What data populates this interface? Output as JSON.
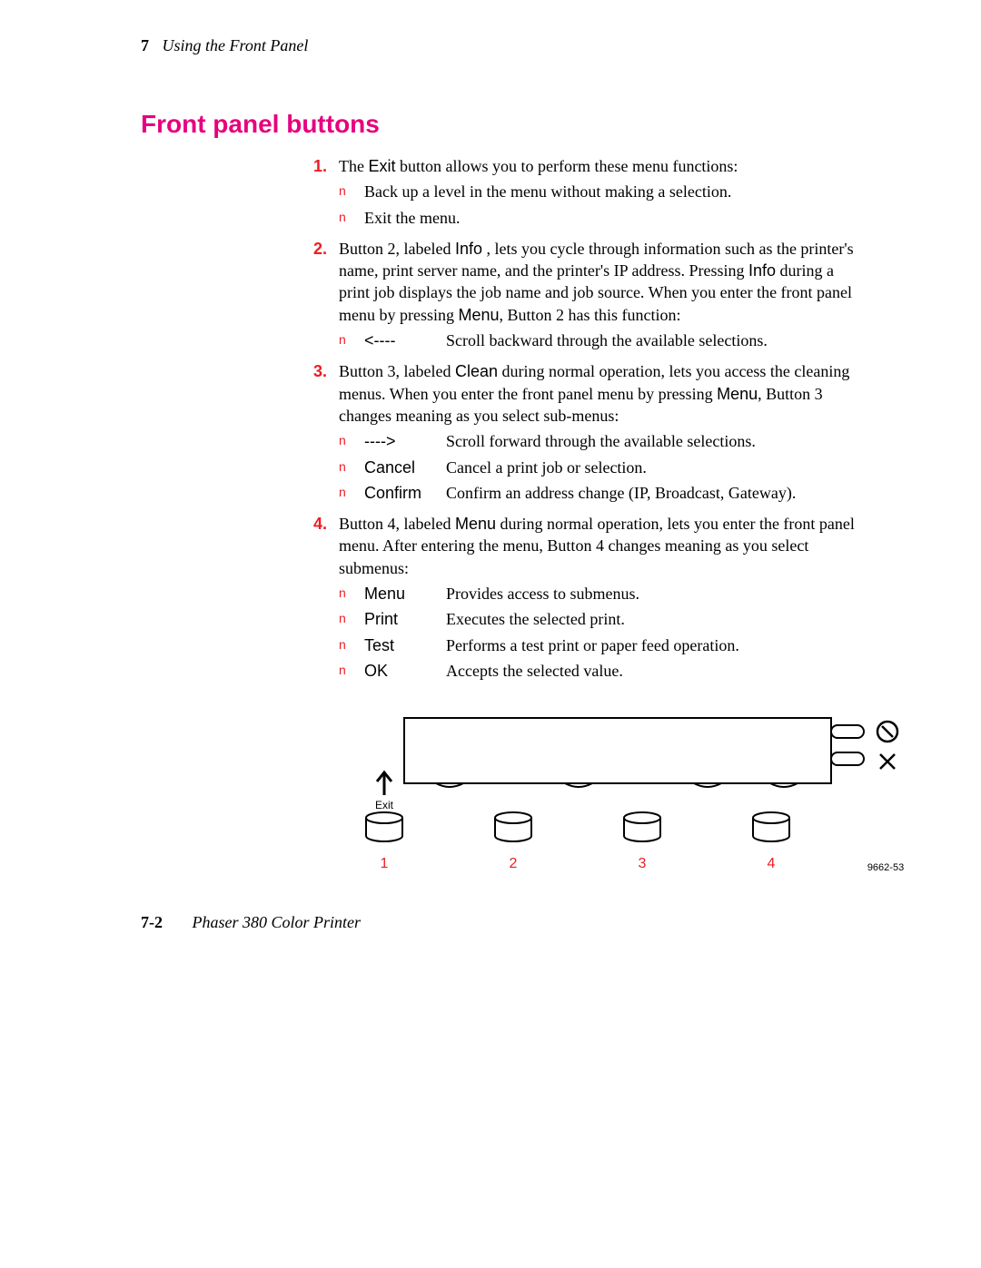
{
  "header": {
    "chapter_number": "7",
    "chapter_title": "Using the Front Panel"
  },
  "section_title": "Front panel buttons",
  "items": [
    {
      "num": "1.",
      "lead": "The ",
      "lead_sans": "Exit",
      "lead_tail": " button allows you to perform these menu functions:",
      "subs": [
        {
          "bullet": "n",
          "label": "",
          "text": "Back up a level in the menu without making a selection."
        },
        {
          "bullet": "n",
          "label": "",
          "text": "Exit the menu."
        }
      ]
    },
    {
      "num": "2.",
      "body_html": "Button 2, labeled <span class=\"inline-sans\">Info</span> , lets you cycle through information such as the printer's name, print server name, and the printer's IP address.  Pressing <span class=\"inline-sans\">Info</span> during a print job displays the job name and job source.  When you enter the front panel menu by pressing <span class=\"inline-sans\">Menu</span>, Button 2 has this function:",
      "subs": [
        {
          "bullet": "n",
          "label": "<----",
          "text": "Scroll backward through the available selections."
        }
      ]
    },
    {
      "num": "3.",
      "body_html": "Button 3, labeled <span class=\"inline-sans\">Clean</span> during normal operation, lets you access the cleaning menus.  When you enter the front panel menu by pressing <span class=\"inline-sans\">Menu</span>, Button 3 changes meaning as you select sub-menus:",
      "subs": [
        {
          "bullet": "n",
          "label": "---->",
          "text": "Scroll forward through the available selections."
        },
        {
          "bullet": "n",
          "label": "Cancel",
          "text": "Cancel a print job or selection."
        },
        {
          "bullet": "n",
          "label": "Confirm",
          "text": "Confirm an address change (IP, Broadcast, Gateway)."
        }
      ]
    },
    {
      "num": "4.",
      "body_html": "Button 4, labeled <span class=\"inline-sans\">Menu</span> during normal operation, lets you enter the front panel menu.  After entering the menu, Button 4 changes meaning as you select submenus:",
      "subs": [
        {
          "bullet": "n",
          "label": "Menu",
          "text": "Provides access to submenus."
        },
        {
          "bullet": "n",
          "label": "Print",
          "text": "Executes the selected print."
        },
        {
          "bullet": "n",
          "label": "Test",
          "text": "Performs a test print or paper feed operation."
        },
        {
          "bullet": "n",
          "label": "OK",
          "text": "Accepts the selected value."
        }
      ]
    }
  ],
  "diagram": {
    "exit_label": "Exit",
    "button_numbers": [
      "1",
      "2",
      "3",
      "4"
    ],
    "part_number": "9662-53",
    "colors": {
      "stroke": "#000000",
      "number_color": "#ed1c24",
      "fill": "#ffffff"
    }
  },
  "footer": {
    "page": "7-2",
    "title": "Phaser 380 Color Printer"
  }
}
